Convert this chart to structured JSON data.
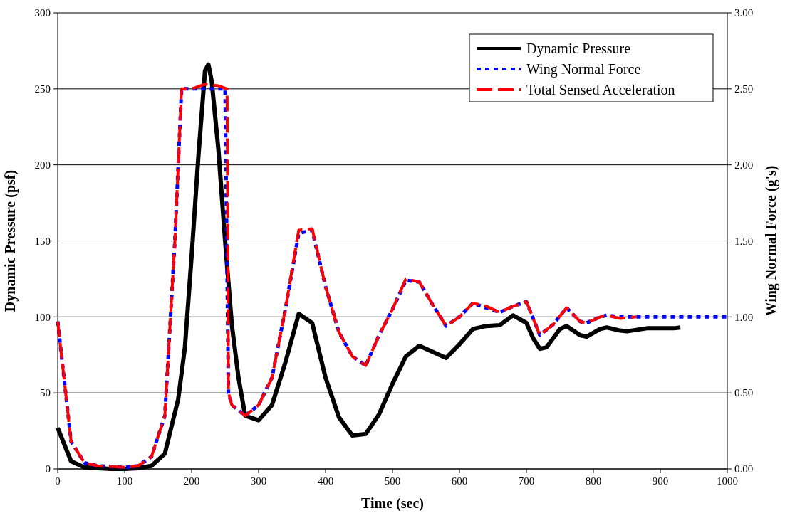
{
  "chart_data": {
    "type": "line",
    "xlabel": "Time (sec)",
    "ylabel": "Dynamic Pressure (psf)",
    "y2label": "Wing Normal Force (g's)",
    "xlim": [
      0,
      1000
    ],
    "xticks": [
      0,
      100,
      200,
      300,
      400,
      500,
      600,
      700,
      800,
      900,
      1000
    ],
    "ylim": [
      0,
      300
    ],
    "yticks": [
      0,
      50,
      100,
      150,
      200,
      250,
      300
    ],
    "y2lim": [
      0,
      3
    ],
    "y2ticks": [
      {
        "value": 0,
        "label": "0.00"
      },
      {
        "value": 0.5,
        "label": "0.50"
      },
      {
        "value": 1,
        "label": "1.00"
      },
      {
        "value": 1.5,
        "label": "1.50"
      },
      {
        "value": 2,
        "label": "2.00"
      },
      {
        "value": 2.5,
        "label": "2.50"
      },
      {
        "value": 3,
        "label": "3.00"
      }
    ],
    "grid": "y",
    "legend": "top right",
    "series": [
      {
        "name": "Dynamic Pressure",
        "color": "#000000",
        "line_style": "solid",
        "x": [
          0,
          20,
          40,
          60,
          80,
          100,
          120,
          140,
          160,
          180,
          190,
          200,
          210,
          220,
          225,
          230,
          240,
          250,
          260,
          270,
          280,
          300,
          320,
          340,
          360,
          380,
          400,
          420,
          440,
          460,
          480,
          500,
          520,
          540,
          560,
          580,
          600,
          620,
          640,
          660,
          680,
          700,
          710,
          720,
          730,
          750,
          760,
          780,
          790,
          810,
          820,
          840,
          850,
          880,
          900,
          920,
          930
        ],
        "values": [
          27,
          5,
          1,
          0.5,
          0,
          0,
          0.5,
          2,
          10,
          46,
          80,
          140,
          205,
          262,
          266,
          255,
          210,
          150,
          95,
          60,
          35,
          32,
          42,
          70,
          102,
          96,
          60,
          34,
          22,
          23,
          36,
          56,
          74,
          81,
          77,
          73,
          82,
          92,
          94,
          94.5,
          101,
          96,
          86,
          79,
          80,
          92,
          94,
          88,
          87,
          92,
          93,
          91,
          90.5,
          92.5,
          92.5,
          92.5,
          93
        ]
      },
      {
        "name": "Wing Normal Force",
        "color": "#0000ff",
        "line_style": "dotted",
        "axis": "y2",
        "x": [
          0,
          20,
          40,
          60,
          80,
          100,
          120,
          140,
          160,
          175,
          185,
          200,
          250,
          255,
          260,
          280,
          300,
          320,
          340,
          360,
          380,
          400,
          420,
          440,
          460,
          480,
          500,
          520,
          540,
          560,
          580,
          600,
          620,
          640,
          660,
          680,
          700,
          720,
          740,
          760,
          780,
          790,
          810,
          820,
          840,
          860,
          880,
          1000
        ],
        "values": [
          0.97,
          0.18,
          0.04,
          0.02,
          0.015,
          0.01,
          0.02,
          0.08,
          0.35,
          1.5,
          2.5,
          2.5,
          2.5,
          0.5,
          0.42,
          0.35,
          0.42,
          0.6,
          1.05,
          1.55,
          1.57,
          1.2,
          0.9,
          0.74,
          0.68,
          0.88,
          1.05,
          1.24,
          1.23,
          1.08,
          0.94,
          1.0,
          1.09,
          1.06,
          1.03,
          1.07,
          1.1,
          0.88,
          0.95,
          1.06,
          0.97,
          0.96,
          1.0,
          1.01,
          1.0,
          1.0,
          1.0,
          1.0
        ]
      },
      {
        "name": "Total Sensed Acceleration",
        "color": "#ff0000",
        "line_style": "dashed",
        "axis": "y2",
        "x": [
          0,
          20,
          40,
          60,
          80,
          100,
          120,
          140,
          160,
          175,
          185,
          200,
          220,
          240,
          253,
          255,
          260,
          280,
          300,
          320,
          340,
          360,
          380,
          400,
          420,
          440,
          460,
          480,
          500,
          520,
          540,
          560,
          580,
          600,
          620,
          640,
          660,
          680,
          700,
          720,
          740,
          760,
          780,
          790,
          810,
          820,
          840,
          864
        ],
        "values": [
          0.97,
          0.18,
          0.04,
          0.02,
          0.015,
          0.01,
          0.02,
          0.08,
          0.35,
          1.5,
          2.5,
          2.5,
          2.53,
          2.52,
          2.5,
          0.5,
          0.42,
          0.35,
          0.42,
          0.6,
          1.05,
          1.57,
          1.58,
          1.2,
          0.9,
          0.74,
          0.68,
          0.88,
          1.05,
          1.25,
          1.23,
          1.08,
          0.94,
          1.0,
          1.09,
          1.07,
          1.03,
          1.07,
          1.1,
          0.88,
          0.95,
          1.06,
          0.97,
          0.96,
          1.0,
          1.01,
          0.99,
          1.0
        ]
      }
    ]
  }
}
